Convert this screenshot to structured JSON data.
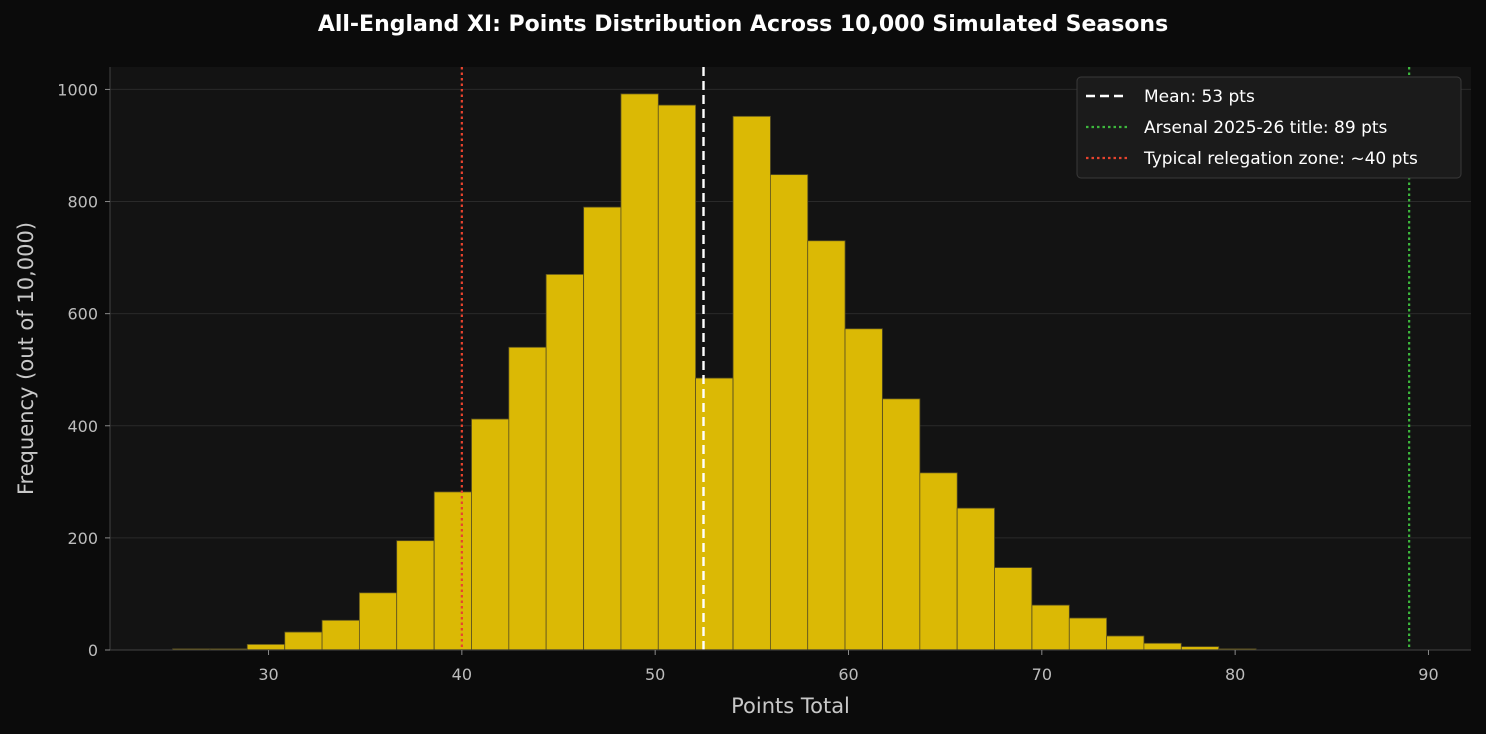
{
  "chart_data": {
    "type": "bar",
    "title": "All-England XI: Points Distribution Across 10,000 Simulated Seasons",
    "xlabel": "Points Total",
    "ylabel": "Frequency (out of 10,000)",
    "xlim": [
      21.8,
      92.2
    ],
    "ylim": [
      0,
      1040
    ],
    "xticks": [
      30,
      40,
      50,
      60,
      70,
      80,
      90
    ],
    "yticks": [
      0,
      200,
      400,
      600,
      800,
      1000
    ],
    "bin_width": 1.932,
    "bins": [
      {
        "x0": 25.04,
        "value": 2
      },
      {
        "x0": 26.97,
        "value": 2
      },
      {
        "x0": 28.9,
        "value": 10
      },
      {
        "x0": 30.84,
        "value": 32
      },
      {
        "x0": 32.77,
        "value": 53
      },
      {
        "x0": 34.7,
        "value": 102
      },
      {
        "x0": 36.63,
        "value": 195
      },
      {
        "x0": 38.57,
        "value": 282
      },
      {
        "x0": 40.5,
        "value": 412
      },
      {
        "x0": 42.43,
        "value": 540
      },
      {
        "x0": 44.36,
        "value": 670
      },
      {
        "x0": 46.3,
        "value": 790
      },
      {
        "x0": 48.23,
        "value": 992
      },
      {
        "x0": 50.16,
        "value": 972
      },
      {
        "x0": 52.09,
        "value": 485
      },
      {
        "x0": 54.03,
        "value": 952
      },
      {
        "x0": 55.96,
        "value": 848
      },
      {
        "x0": 57.89,
        "value": 730
      },
      {
        "x0": 59.82,
        "value": 573
      },
      {
        "x0": 61.76,
        "value": 448
      },
      {
        "x0": 63.69,
        "value": 316
      },
      {
        "x0": 65.62,
        "value": 253
      },
      {
        "x0": 67.55,
        "value": 147
      },
      {
        "x0": 69.49,
        "value": 80
      },
      {
        "x0": 71.42,
        "value": 57
      },
      {
        "x0": 73.35,
        "value": 25
      },
      {
        "x0": 75.28,
        "value": 12
      },
      {
        "x0": 77.22,
        "value": 6
      },
      {
        "x0": 79.15,
        "value": 2
      }
    ],
    "reference_lines": [
      {
        "x": 52.5,
        "label": "Mean: 53 pts",
        "color": "#ffffff",
        "style": "dashed"
      },
      {
        "x": 89,
        "label": "Arsenal 2025-26 title: 89 pts",
        "color": "#3db83d",
        "style": "dotted"
      },
      {
        "x": 40,
        "label": "Typical relegation zone: ~40 pts",
        "color": "#e8432e",
        "style": "dotted"
      }
    ],
    "legend_position": "top-right",
    "grid": "horizontal",
    "colors": {
      "bar": "#dbb905",
      "bar_edge": "#5a5020",
      "background": "#131313",
      "figure": "#0b0b0b"
    }
  }
}
